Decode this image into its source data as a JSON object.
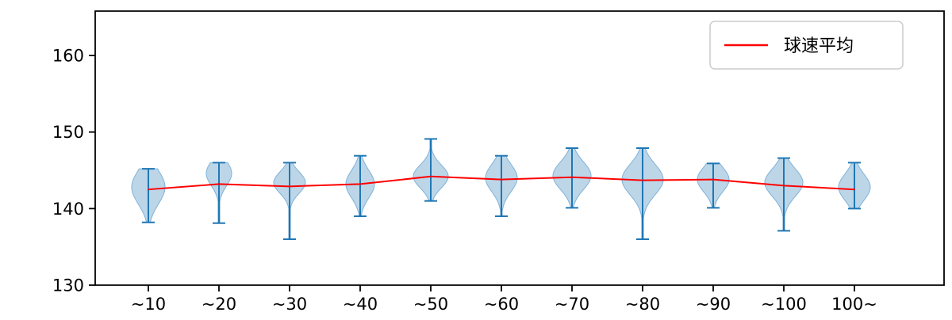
{
  "figure": {
    "background": "#ffffff"
  },
  "chart_data": {
    "type": "violin",
    "title": "",
    "xlabel": "",
    "ylabel": "",
    "categories": [
      "~10",
      "~20",
      "~30",
      "~40",
      "~50",
      "~60",
      "~70",
      "~80",
      "~90",
      "~100",
      "100~"
    ],
    "y_ticks": [
      130,
      140,
      150,
      160
    ],
    "ylim": [
      130,
      165.8
    ],
    "grid": false,
    "legend": {
      "position": "upper right",
      "entries": [
        {
          "label": "球速平均",
          "color": "#ff0000",
          "marker": "line"
        }
      ]
    },
    "violins": [
      {
        "label": "~10",
        "min": 138.2,
        "max": 145.2,
        "peak": 142.8,
        "sigma": 2.2,
        "halfwidth": 21
      },
      {
        "label": "~20",
        "min": 138.1,
        "max": 146.0,
        "peak": 144.6,
        "sigma": 1.6,
        "halfwidth": 16
      },
      {
        "label": "~30",
        "min": 136.0,
        "max": 146.0,
        "peak": 143.4,
        "sigma": 1.4,
        "halfwidth": 20
      },
      {
        "label": "~40",
        "min": 139.0,
        "max": 146.9,
        "peak": 143.2,
        "sigma": 1.8,
        "halfwidth": 18
      },
      {
        "label": "~50",
        "min": 141.0,
        "max": 149.1,
        "peak": 144.2,
        "sigma": 1.5,
        "halfwidth": 22
      },
      {
        "label": "~60",
        "min": 139.0,
        "max": 146.9,
        "peak": 144.0,
        "sigma": 1.8,
        "halfwidth": 20
      },
      {
        "label": "~70",
        "min": 140.1,
        "max": 147.9,
        "peak": 144.3,
        "sigma": 1.8,
        "halfwidth": 24
      },
      {
        "label": "~80",
        "min": 136.0,
        "max": 147.9,
        "peak": 143.8,
        "sigma": 2.0,
        "halfwidth": 26
      },
      {
        "label": "~90",
        "min": 140.1,
        "max": 145.9,
        "peak": 143.8,
        "sigma": 1.6,
        "halfwidth": 20
      },
      {
        "label": "~100",
        "min": 137.1,
        "max": 146.6,
        "peak": 143.4,
        "sigma": 1.8,
        "halfwidth": 24
      },
      {
        "label": "100~",
        "min": 140.0,
        "max": 146.0,
        "peak": 142.8,
        "sigma": 1.7,
        "halfwidth": 20
      }
    ],
    "series": [
      {
        "name": "球速平均",
        "values": [
          142.5,
          143.2,
          142.9,
          143.2,
          144.2,
          143.8,
          144.1,
          143.7,
          143.8,
          143.0,
          142.5
        ]
      }
    ],
    "colors": {
      "violin_fill": "#bcd6e8",
      "violin_edge": "#7fb2d9",
      "whisker": "#2077b4",
      "mean_line": "#ff0000",
      "axis": "#000000",
      "legend_border": "#cccccc",
      "text": "#000000"
    }
  }
}
